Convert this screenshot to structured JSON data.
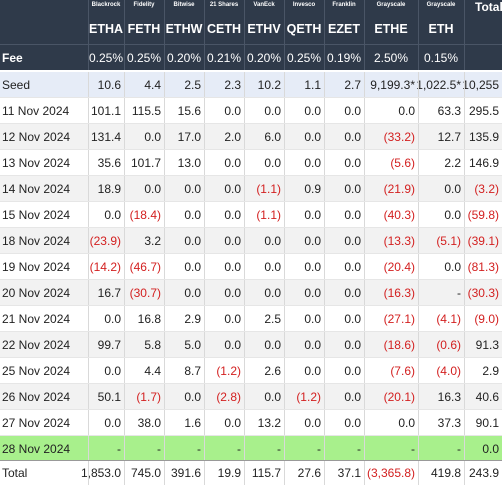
{
  "header": {
    "fee_label": "Fee",
    "total_label": "Total",
    "funds": [
      {
        "issuer": "Blackrock",
        "ticker": "ETHA",
        "fee": "0.25%"
      },
      {
        "issuer": "Fidelity",
        "ticker": "FETH",
        "fee": "0.25%"
      },
      {
        "issuer": "Bitwise",
        "ticker": "ETHW",
        "fee": "0.20%"
      },
      {
        "issuer": "21 Shares",
        "ticker": "CETH",
        "fee": "0.21%"
      },
      {
        "issuer": "VanEck",
        "ticker": "ETHV",
        "fee": "0.20%"
      },
      {
        "issuer": "Invesco",
        "ticker": "QETH",
        "fee": "0.25%"
      },
      {
        "issuer": "Franklin",
        "ticker": "EZET",
        "fee": "0.19%"
      },
      {
        "issuer": "Grayscale",
        "ticker": "ETHE",
        "fee": "2.50%"
      },
      {
        "issuer": "Grayscale",
        "ticker": "ETH",
        "fee": "0.15%"
      }
    ]
  },
  "rows": [
    {
      "label": "Seed",
      "values": [
        "10.6",
        "4.4",
        "2.5",
        "2.3",
        "10.2",
        "1.1",
        "2.7",
        "9,199.3*",
        "1,022.5*",
        "10,255"
      ],
      "style": "seed"
    },
    {
      "label": "11 Nov 2024",
      "values": [
        "101.1",
        "115.5",
        "15.6",
        "0.0",
        "0.0",
        "0.0",
        "0.0",
        "0.0",
        "63.3",
        "295.5"
      ]
    },
    {
      "label": "12 Nov 2024",
      "values": [
        "131.4",
        "0.0",
        "17.0",
        "2.0",
        "6.0",
        "0.0",
        "0.0",
        "(33.2)",
        "12.7",
        "135.9"
      ]
    },
    {
      "label": "13 Nov 2024",
      "values": [
        "35.6",
        "101.7",
        "13.0",
        "0.0",
        "0.0",
        "0.0",
        "0.0",
        "(5.6)",
        "2.2",
        "146.9"
      ]
    },
    {
      "label": "14 Nov 2024",
      "values": [
        "18.9",
        "0.0",
        "0.0",
        "0.0",
        "(1.1)",
        "0.9",
        "0.0",
        "(21.9)",
        "0.0",
        "(3.2)"
      ]
    },
    {
      "label": "15 Nov 2024",
      "values": [
        "0.0",
        "(18.4)",
        "0.0",
        "0.0",
        "(1.1)",
        "0.0",
        "0.0",
        "(40.3)",
        "0.0",
        "(59.8)"
      ]
    },
    {
      "label": "18 Nov 2024",
      "values": [
        "(23.9)",
        "3.2",
        "0.0",
        "0.0",
        "0.0",
        "0.0",
        "0.0",
        "(13.3)",
        "(5.1)",
        "(39.1)"
      ]
    },
    {
      "label": "19 Nov 2024",
      "values": [
        "(14.2)",
        "(46.7)",
        "0.0",
        "0.0",
        "0.0",
        "0.0",
        "0.0",
        "(20.4)",
        "0.0",
        "(81.3)"
      ]
    },
    {
      "label": "20 Nov 2024",
      "values": [
        "16.7",
        "(30.7)",
        "0.0",
        "0.0",
        "0.0",
        "0.0",
        "0.0",
        "(16.3)",
        "-",
        "(30.3)"
      ]
    },
    {
      "label": "21 Nov 2024",
      "values": [
        "0.0",
        "16.8",
        "2.9",
        "0.0",
        "2.5",
        "0.0",
        "0.0",
        "(27.1)",
        "(4.1)",
        "(9.0)"
      ]
    },
    {
      "label": "22 Nov 2024",
      "values": [
        "99.7",
        "5.8",
        "5.0",
        "0.0",
        "0.0",
        "0.0",
        "0.0",
        "(18.6)",
        "(0.6)",
        "91.3"
      ]
    },
    {
      "label": "25 Nov 2024",
      "values": [
        "0.0",
        "4.4",
        "8.7",
        "(1.2)",
        "2.6",
        "0.0",
        "0.0",
        "(7.6)",
        "(4.0)",
        "2.9"
      ]
    },
    {
      "label": "26 Nov 2024",
      "values": [
        "50.1",
        "(1.7)",
        "0.0",
        "(2.8)",
        "0.0",
        "(1.2)",
        "0.0",
        "(20.1)",
        "16.3",
        "40.6"
      ]
    },
    {
      "label": "27 Nov 2024",
      "values": [
        "0.0",
        "38.0",
        "1.6",
        "0.0",
        "13.2",
        "0.0",
        "0.0",
        "0.0",
        "37.3",
        "90.1"
      ]
    },
    {
      "label": "28 Nov 2024",
      "values": [
        "-",
        "-",
        "-",
        "-",
        "-",
        "-",
        "-",
        "-",
        "-",
        "0.0"
      ],
      "style": "today"
    }
  ],
  "total": {
    "label": "Total",
    "values": [
      "1,853.0",
      "745.0",
      "391.6",
      "19.9",
      "115.7",
      "27.6",
      "37.1",
      "(3,365.8)",
      "419.8",
      "243.9"
    ]
  }
}
